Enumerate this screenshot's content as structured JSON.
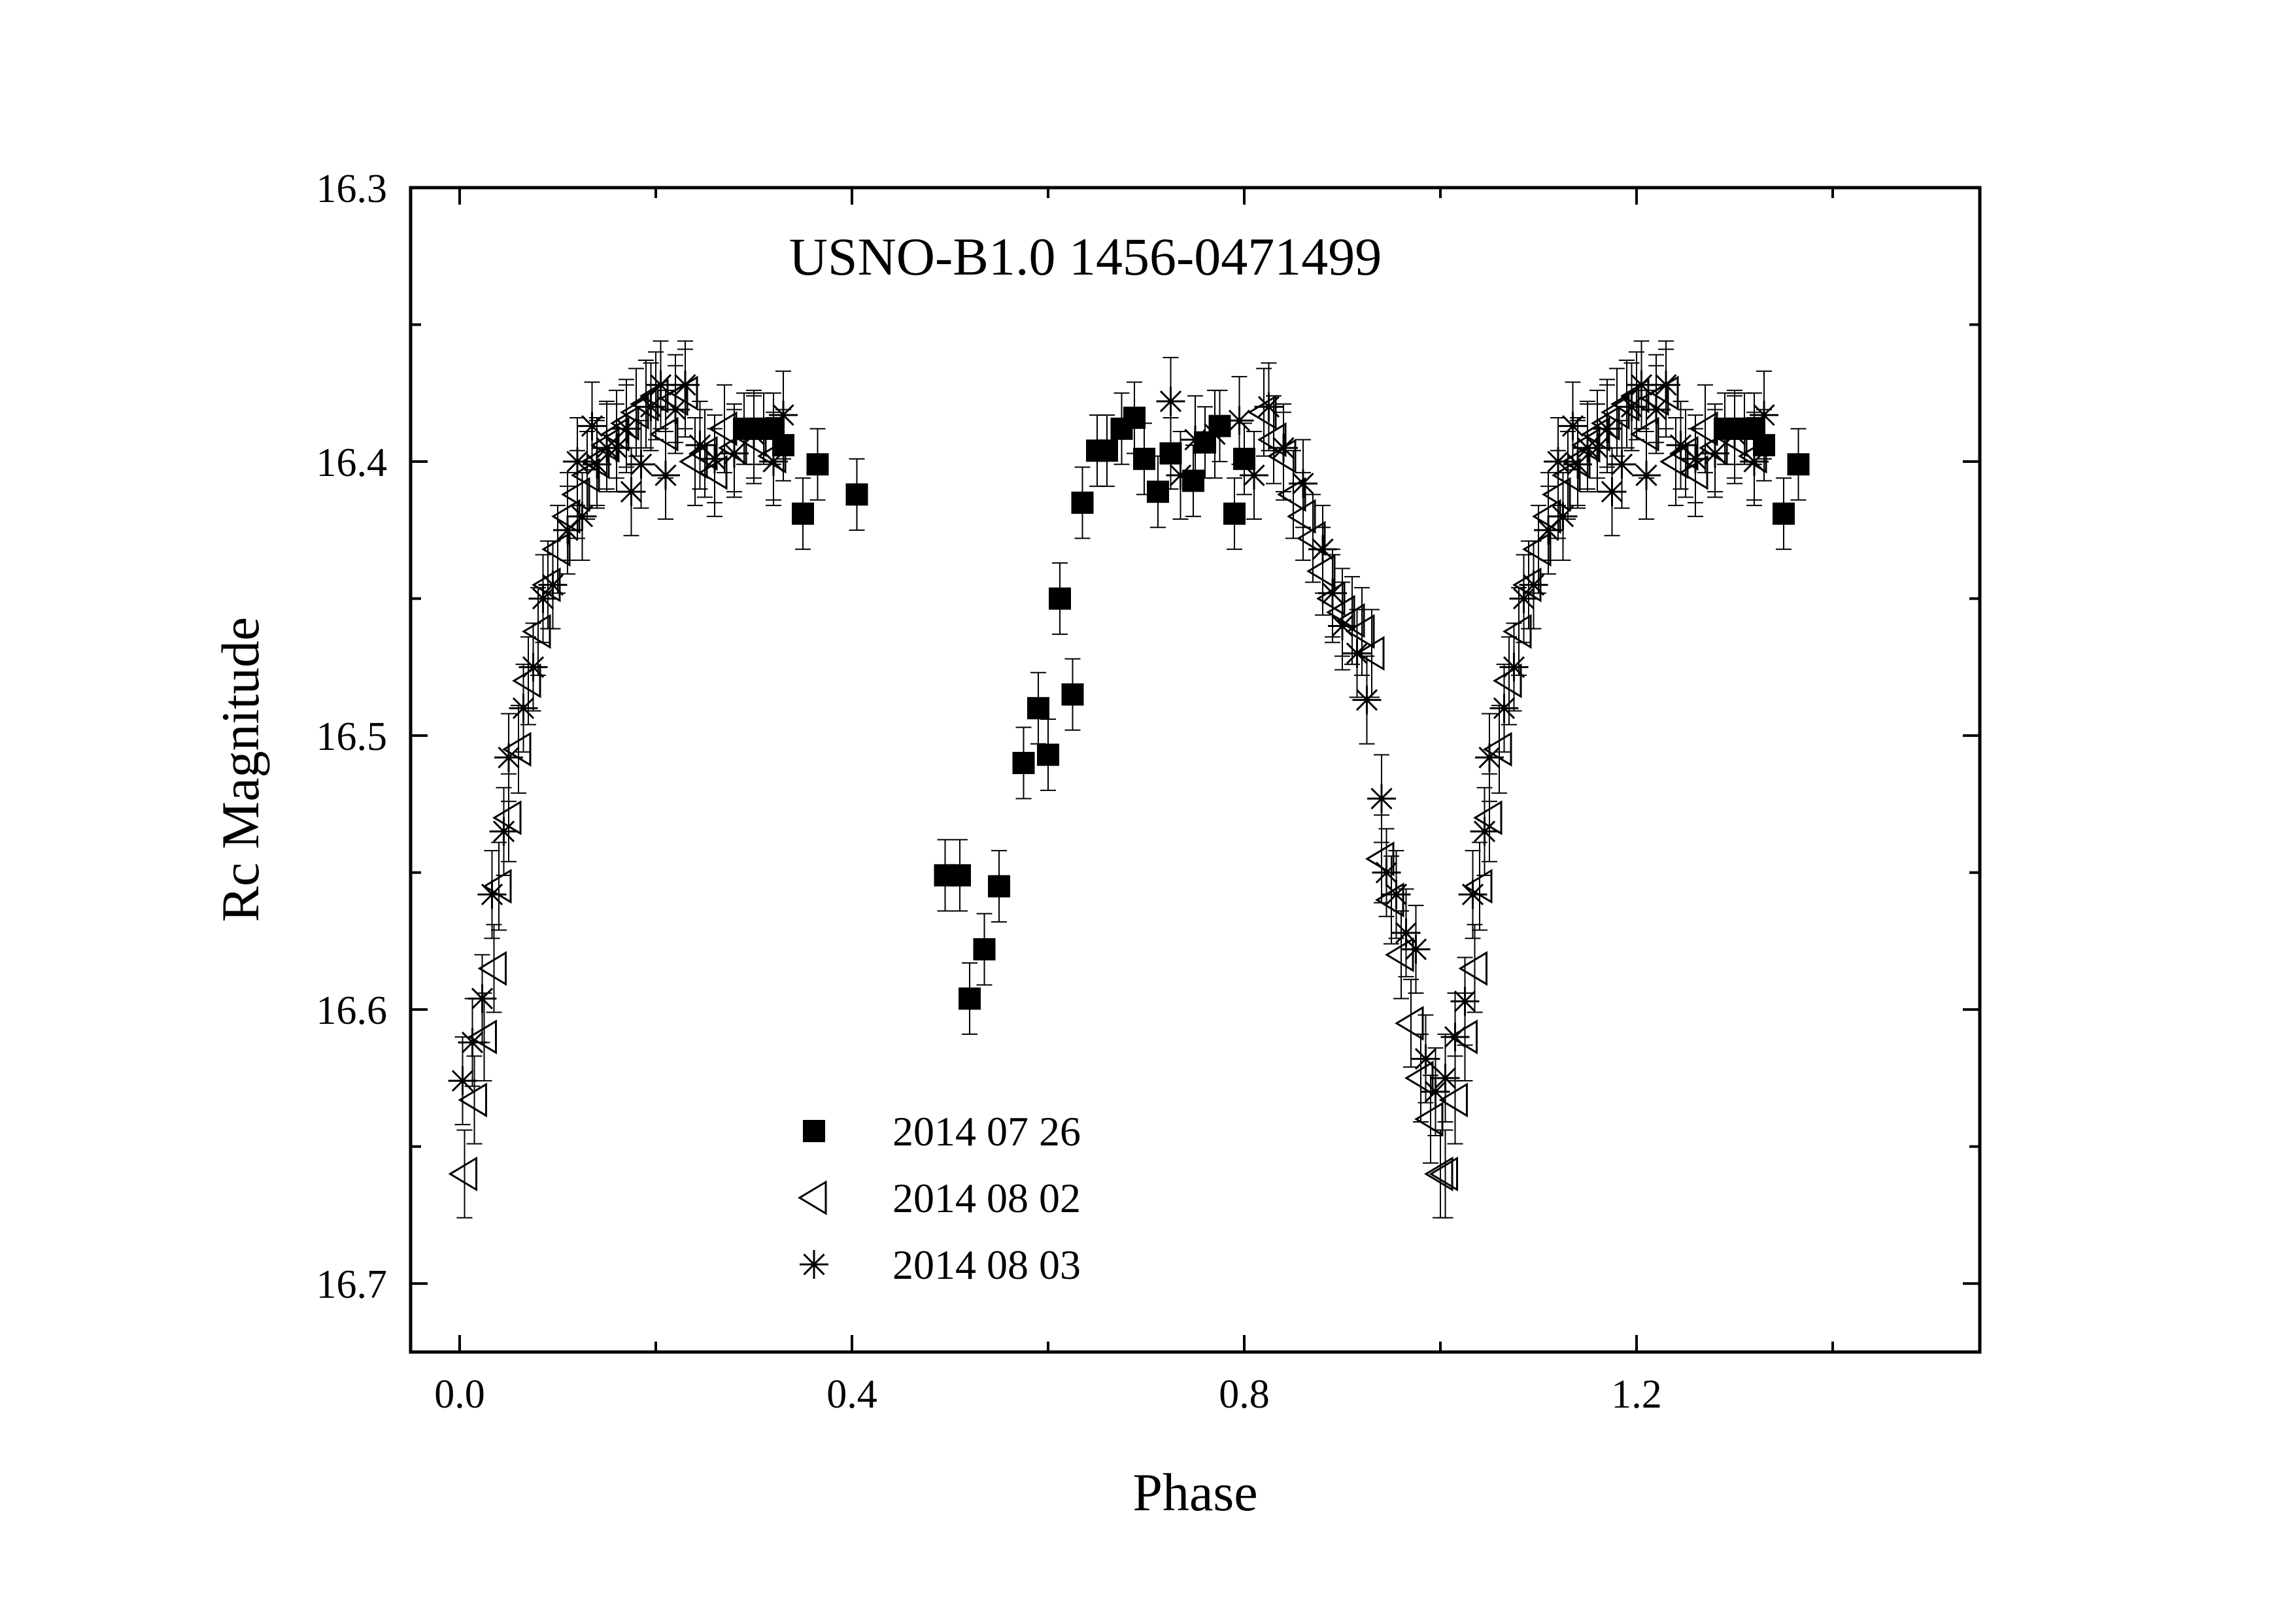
{
  "chart_data": {
    "type": "scatter",
    "title": "USNO-B1.0 1456-0471499",
    "xlabel": "Phase",
    "ylabel": "Rc Magnitude",
    "xlim": [
      -0.05,
      1.55
    ],
    "ylim": [
      16.3,
      16.725
    ],
    "y_inverted": true,
    "x_ticks": [
      0.0,
      0.4,
      0.8,
      1.2
    ],
    "x_tick_labels": [
      "0.0",
      "0.4",
      "0.8",
      "1.2"
    ],
    "y_ticks": [
      16.3,
      16.4,
      16.5,
      16.6,
      16.7
    ],
    "y_tick_labels": [
      "16.3",
      "16.4",
      "16.5",
      "16.6",
      "16.7"
    ],
    "grid": false,
    "legend_position": "lower-center",
    "series": [
      {
        "name": "2014 07 26",
        "marker": "filled-square",
        "color": "#000000",
        "error": 0.013,
        "points": [
          [
            0.29,
            16.388
          ],
          [
            0.3,
            16.388
          ],
          [
            0.31,
            16.388
          ],
          [
            0.32,
            16.388
          ],
          [
            0.33,
            16.394
          ],
          [
            0.35,
            16.419
          ],
          [
            0.365,
            16.401
          ],
          [
            0.405,
            16.412
          ],
          [
            0.495,
            16.551
          ],
          [
            0.51,
            16.551
          ],
          [
            0.52,
            16.596
          ],
          [
            0.535,
            16.578
          ],
          [
            0.55,
            16.555
          ],
          [
            0.575,
            16.51
          ],
          [
            0.59,
            16.49
          ],
          [
            0.6,
            16.507
          ],
          [
            0.612,
            16.45
          ],
          [
            0.625,
            16.485
          ],
          [
            0.635,
            16.415
          ],
          [
            0.65,
            16.396
          ],
          [
            0.66,
            16.396
          ],
          [
            0.675,
            16.388
          ],
          [
            0.688,
            16.384
          ],
          [
            0.698,
            16.399
          ],
          [
            0.712,
            16.411
          ],
          [
            0.725,
            16.397
          ],
          [
            0.748,
            16.407
          ],
          [
            0.76,
            16.393
          ],
          [
            0.775,
            16.387
          ],
          [
            0.79,
            16.419
          ],
          [
            0.8,
            16.399
          ],
          [
            1.29,
            16.388
          ],
          [
            1.3,
            16.388
          ],
          [
            1.31,
            16.388
          ],
          [
            1.32,
            16.388
          ],
          [
            1.33,
            16.394
          ],
          [
            1.35,
            16.419
          ],
          [
            1.365,
            16.401
          ]
        ]
      },
      {
        "name": "2014 08 02",
        "marker": "open-left-triangle",
        "color": "#000000",
        "error": 0.016,
        "points": [
          [
            0.005,
            16.66
          ],
          [
            0.015,
            16.633
          ],
          [
            0.025,
            16.61
          ],
          [
            0.035,
            16.585
          ],
          [
            0.04,
            16.555
          ],
          [
            0.05,
            16.53
          ],
          [
            0.06,
            16.505
          ],
          [
            0.07,
            16.48
          ],
          [
            0.08,
            16.462
          ],
          [
            0.09,
            16.445
          ],
          [
            0.1,
            16.432
          ],
          [
            0.11,
            16.42
          ],
          [
            0.12,
            16.412
          ],
          [
            0.13,
            16.405
          ],
          [
            0.14,
            16.4
          ],
          [
            0.15,
            16.394
          ],
          [
            0.16,
            16.39
          ],
          [
            0.17,
            16.386
          ],
          [
            0.18,
            16.382
          ],
          [
            0.19,
            16.379
          ],
          [
            0.2,
            16.376
          ],
          [
            0.21,
            16.39
          ],
          [
            0.22,
            16.377
          ],
          [
            0.23,
            16.375
          ],
          [
            0.24,
            16.4
          ],
          [
            0.25,
            16.397
          ],
          [
            0.26,
            16.404
          ],
          [
            0.27,
            16.388
          ],
          [
            0.28,
            16.395
          ],
          [
            0.3,
            16.392
          ],
          [
            0.32,
            16.398
          ],
          [
            0.82,
            16.382
          ],
          [
            0.83,
            16.392
          ],
          [
            0.84,
            16.398
          ],
          [
            0.85,
            16.412
          ],
          [
            0.86,
            16.42
          ],
          [
            0.87,
            16.428
          ],
          [
            0.88,
            16.44
          ],
          [
            0.89,
            16.45
          ],
          [
            0.9,
            16.455
          ],
          [
            0.91,
            16.458
          ],
          [
            0.92,
            16.462
          ],
          [
            0.93,
            16.47
          ],
          [
            0.94,
            16.545
          ],
          [
            0.95,
            16.56
          ],
          [
            0.96,
            16.58
          ],
          [
            0.97,
            16.605
          ],
          [
            0.98,
            16.625
          ],
          [
            0.99,
            16.64
          ],
          [
            1.0,
            16.66
          ],
          [
            1.005,
            16.66
          ],
          [
            1.015,
            16.633
          ],
          [
            1.025,
            16.61
          ],
          [
            1.035,
            16.585
          ],
          [
            1.04,
            16.555
          ],
          [
            1.05,
            16.53
          ],
          [
            1.06,
            16.505
          ],
          [
            1.07,
            16.48
          ],
          [
            1.08,
            16.462
          ],
          [
            1.09,
            16.445
          ],
          [
            1.1,
            16.432
          ],
          [
            1.11,
            16.42
          ],
          [
            1.12,
            16.412
          ],
          [
            1.13,
            16.405
          ],
          [
            1.14,
            16.4
          ],
          [
            1.15,
            16.394
          ],
          [
            1.16,
            16.39
          ],
          [
            1.17,
            16.386
          ],
          [
            1.18,
            16.382
          ],
          [
            1.19,
            16.379
          ],
          [
            1.2,
            16.376
          ],
          [
            1.21,
            16.39
          ],
          [
            1.22,
            16.377
          ],
          [
            1.23,
            16.375
          ],
          [
            1.24,
            16.4
          ],
          [
            1.25,
            16.397
          ],
          [
            1.26,
            16.404
          ],
          [
            1.27,
            16.388
          ],
          [
            1.28,
            16.395
          ],
          [
            1.3,
            16.392
          ],
          [
            1.32,
            16.398
          ]
        ]
      },
      {
        "name": "2014 08 03",
        "marker": "asterisk",
        "color": "#000000",
        "error": 0.016,
        "points": [
          [
            0.003,
            16.626
          ],
          [
            0.013,
            16.612
          ],
          [
            0.023,
            16.596
          ],
          [
            0.033,
            16.558
          ],
          [
            0.045,
            16.535
          ],
          [
            0.05,
            16.508
          ],
          [
            0.065,
            16.49
          ],
          [
            0.075,
            16.475
          ],
          [
            0.085,
            16.45
          ],
          [
            0.095,
            16.445
          ],
          [
            0.11,
            16.425
          ],
          [
            0.12,
            16.4
          ],
          [
            0.125,
            16.42
          ],
          [
            0.135,
            16.387
          ],
          [
            0.14,
            16.401
          ],
          [
            0.15,
            16.395
          ],
          [
            0.16,
            16.395
          ],
          [
            0.17,
            16.388
          ],
          [
            0.175,
            16.411
          ],
          [
            0.185,
            16.401
          ],
          [
            0.195,
            16.38
          ],
          [
            0.205,
            16.372
          ],
          [
            0.21,
            16.405
          ],
          [
            0.22,
            16.381
          ],
          [
            0.23,
            16.372
          ],
          [
            0.245,
            16.394
          ],
          [
            0.26,
            16.399
          ],
          [
            0.28,
            16.397
          ],
          [
            0.3,
            16.39
          ],
          [
            0.32,
            16.4
          ],
          [
            0.33,
            16.383
          ],
          [
            0.725,
            16.378
          ],
          [
            0.735,
            16.405
          ],
          [
            0.75,
            16.392
          ],
          [
            0.77,
            16.39
          ],
          [
            0.795,
            16.385
          ],
          [
            0.81,
            16.405
          ],
          [
            0.825,
            16.38
          ],
          [
            0.84,
            16.395
          ],
          [
            0.86,
            16.408
          ],
          [
            0.88,
            16.432
          ],
          [
            0.89,
            16.448
          ],
          [
            0.9,
            16.46
          ],
          [
            0.915,
            16.47
          ],
          [
            0.925,
            16.487
          ],
          [
            0.94,
            16.523
          ],
          [
            0.945,
            16.55
          ],
          [
            0.955,
            16.558
          ],
          [
            0.965,
            16.572
          ],
          [
            0.975,
            16.578
          ],
          [
            0.985,
            16.618
          ],
          [
            0.995,
            16.63
          ],
          [
            1.005,
            16.625
          ],
          [
            1.015,
            16.61
          ],
          [
            1.025,
            16.597
          ],
          [
            1.033,
            16.558
          ],
          [
            1.045,
            16.535
          ],
          [
            1.05,
            16.508
          ],
          [
            1.065,
            16.49
          ],
          [
            1.075,
            16.475
          ],
          [
            1.085,
            16.45
          ],
          [
            1.095,
            16.445
          ],
          [
            1.11,
            16.425
          ],
          [
            1.12,
            16.4
          ],
          [
            1.125,
            16.42
          ],
          [
            1.135,
            16.387
          ],
          [
            1.14,
            16.401
          ],
          [
            1.15,
            16.395
          ],
          [
            1.16,
            16.395
          ],
          [
            1.17,
            16.388
          ],
          [
            1.175,
            16.411
          ],
          [
            1.185,
            16.401
          ],
          [
            1.195,
            16.38
          ],
          [
            1.205,
            16.372
          ],
          [
            1.21,
            16.405
          ],
          [
            1.22,
            16.381
          ],
          [
            1.23,
            16.372
          ],
          [
            1.245,
            16.394
          ],
          [
            1.26,
            16.399
          ],
          [
            1.28,
            16.397
          ],
          [
            1.3,
            16.39
          ],
          [
            1.32,
            16.4
          ],
          [
            1.33,
            16.383
          ]
        ]
      }
    ]
  }
}
